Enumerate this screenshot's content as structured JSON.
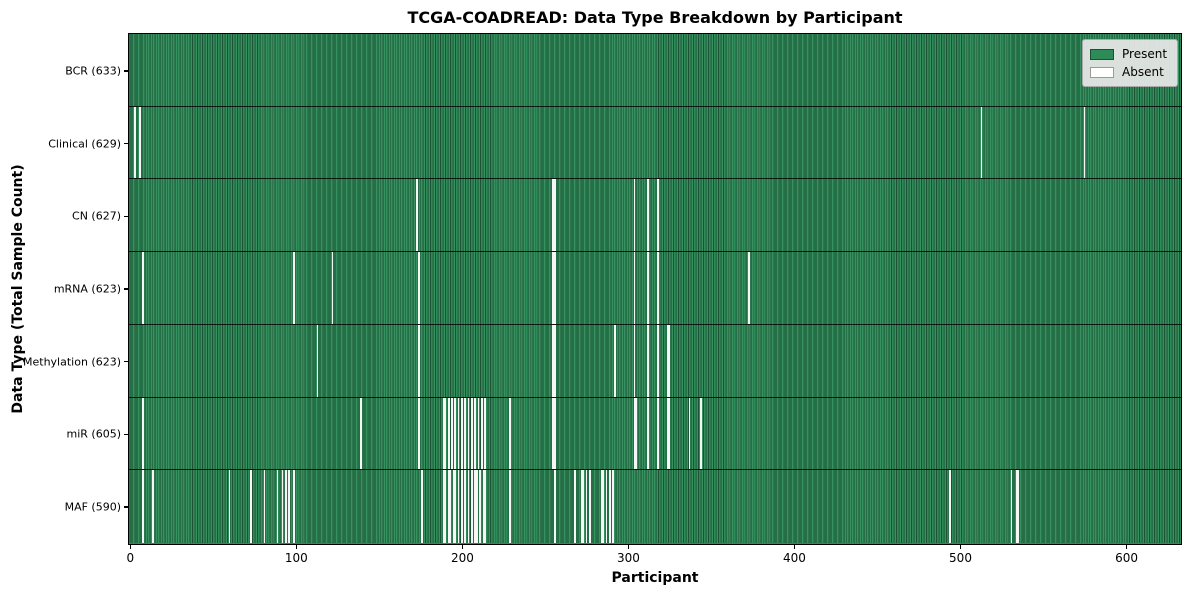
{
  "title": "TCGA-COADREAD: Data Type Breakdown by Participant",
  "x_axis": {
    "label": "Participant",
    "ticks": [
      "0",
      "100",
      "200",
      "300",
      "400",
      "500",
      "600"
    ]
  },
  "y_axis": {
    "label": "Data Type (Total Sample Count)"
  },
  "legend": {
    "0": {
      "label": "Present",
      "color": "#2e8b57",
      "border": "#1c4f35"
    },
    "1": {
      "label": "Absent",
      "color": "#ffffff",
      "border": "#9a9a9a"
    }
  },
  "colors": {
    "present": "#2e8b57",
    "present_edge": "#1e5c3c",
    "absent": "#f6f6f6",
    "axis": "#000000",
    "legend_bg": "#e9e9e9"
  },
  "chart_data": {
    "type": "heatmap",
    "title": "TCGA-COADREAD: Data Type Breakdown by Participant",
    "xlabel": "Participant",
    "ylabel": "Data Type (Total Sample Count)",
    "x_range": [
      0,
      633
    ],
    "x_tick_values": [
      0,
      100,
      200,
      300,
      400,
      500,
      600
    ],
    "n_participants": 633,
    "legend_entries": [
      "Present",
      "Absent"
    ],
    "legend_position": "upper right",
    "rows": [
      {
        "name": "BCR",
        "label": "BCR (633)",
        "total": 633,
        "absent_count": 0,
        "absent_participants": []
      },
      {
        "name": "Clinical",
        "label": "Clinical (629)",
        "total": 629,
        "absent_count": 4,
        "absent_participants": [
          3,
          6,
          513,
          575
        ]
      },
      {
        "name": "CN",
        "label": "CN (627)",
        "total": 627,
        "absent_count": 6,
        "absent_participants": [
          173,
          255,
          256,
          304,
          312,
          318
        ]
      },
      {
        "name": "mRNA",
        "label": "mRNA (623)",
        "total": 623,
        "absent_count": 10,
        "absent_participants": [
          8,
          99,
          122,
          174,
          255,
          256,
          304,
          312,
          318,
          373
        ]
      },
      {
        "name": "Methylation",
        "label": "Methylation (623)",
        "total": 623,
        "absent_count": 10,
        "absent_participants": [
          113,
          174,
          255,
          256,
          292,
          304,
          312,
          318,
          324,
          325
        ]
      },
      {
        "name": "miR",
        "label": "miR (605)",
        "total": 605,
        "absent_count": 28,
        "absent_participants": [
          8,
          139,
          174,
          189,
          190,
          192,
          194,
          196,
          198,
          200,
          202,
          204,
          206,
          208,
          210,
          212,
          214,
          229,
          255,
          256,
          304,
          305,
          312,
          318,
          324,
          325,
          337,
          344
        ]
      },
      {
        "name": "MAF",
        "label": "MAF (590)",
        "total": 590,
        "absent_count": 43,
        "absent_participants": [
          8,
          14,
          60,
          73,
          81,
          89,
          92,
          94,
          96,
          99,
          176,
          189,
          190,
          192,
          193,
          195,
          196,
          198,
          200,
          202,
          204,
          206,
          208,
          209,
          211,
          213,
          214,
          229,
          256,
          268,
          272,
          273,
          275,
          277,
          284,
          285,
          287,
          289,
          291,
          494,
          531,
          534,
          535
        ]
      }
    ]
  }
}
